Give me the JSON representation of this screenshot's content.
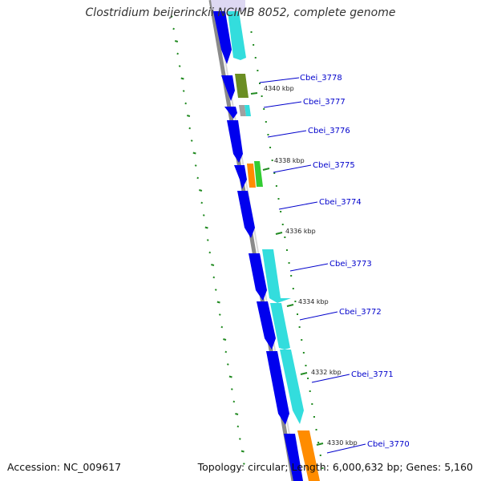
{
  "map": {
    "title": "Clostridium beijerinckii NCIMB 8052, complete genome",
    "accession": "Accession: NC_009617",
    "topology": "Topology: circular; Length: 6,000,632 bp; Genes: 5,160"
  },
  "gene_labels": [
    "Cbei_3778",
    "Cbei_3777",
    "Cbei_3776",
    "Cbei_3775",
    "Cbei_3774",
    "Cbei_3773",
    "Cbei_3772",
    "Cbei_3771",
    "Cbei_3770"
  ],
  "scale_labels": [
    "4340 kbp",
    "4338 kbp",
    "4336 kbp",
    "4334 kbp",
    "4332 kbp",
    "4330 kbp"
  ],
  "colors": {
    "cds": "#0000ee",
    "cyan": "#33dddd",
    "olive": "#6b8e23",
    "orange": "#ff8c00",
    "green": "#33cc33",
    "grey": "#a0a0a0",
    "gc_skew": "#228b22",
    "label": "#0000cc"
  }
}
